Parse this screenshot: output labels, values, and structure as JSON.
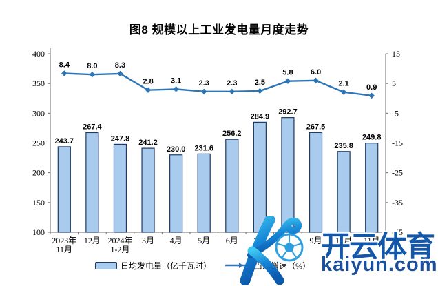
{
  "title": "图8  规模以上工业发电量月度走势",
  "chart_data": {
    "type": "combo-bar-line",
    "title": "图8  规模以上工业发电量月度走势",
    "categories": [
      "2023年\n11月",
      "12月",
      "2024年\n1-2月",
      "3月",
      "4月",
      "5月",
      "6月",
      "7月",
      "8月",
      "9月",
      "10月",
      "11月"
    ],
    "series": [
      {
        "name": "日均发电量（亿千瓦时）",
        "type": "bar",
        "axis": "left",
        "values": [
          243.7,
          267.4,
          247.8,
          241.2,
          230.0,
          231.6,
          256.2,
          284.9,
          292.7,
          267.5,
          235.8,
          249.8
        ]
      },
      {
        "name": "当月增速（%）",
        "type": "line",
        "axis": "right",
        "values": [
          8.4,
          8.0,
          8.3,
          2.8,
          3.1,
          2.3,
          2.3,
          2.5,
          5.8,
          6.0,
          2.1,
          0.9
        ]
      }
    ],
    "left_axis": {
      "min": 100,
      "max": 400,
      "ticks": [
        400,
        350,
        300,
        250,
        200,
        150,
        100
      ]
    },
    "right_axis": {
      "min": -45,
      "max": 15,
      "ticks": [
        15,
        5,
        -5,
        -15,
        -25,
        -35,
        -45
      ]
    },
    "grid": false,
    "legend_position": "bottom"
  },
  "legend": {
    "bar_label": "日均发电量（亿千瓦时）",
    "line_label": "当月增速（%）"
  },
  "watermark": {
    "brand_cn": "开云体育",
    "brand_url": "kaiyun.com"
  },
  "colors": {
    "bar_fill": "#A9CCEE",
    "bar_border": "#1F3864",
    "line": "#2E75B6",
    "axis": "#6E6E6E",
    "label": "#000000",
    "watermark_grad_top": "#3EC6F0",
    "watermark_grad_bottom": "#0C5AAD",
    "watermark_ball": "#2D9FE0",
    "watermark_cn": "#1456A8",
    "watermark_url": "#1B4F9C"
  }
}
